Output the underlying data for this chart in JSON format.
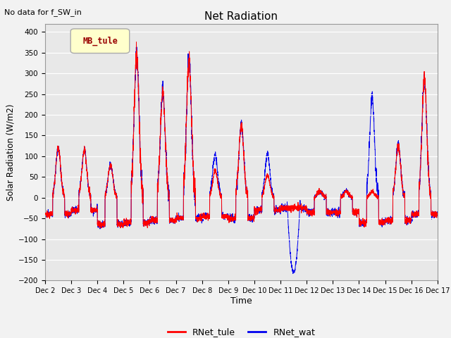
{
  "title": "Net Radiation",
  "xlabel": "Time",
  "ylabel": "Solar Radiation (W/m2)",
  "top_left_text": "No data for f_SW_in",
  "legend_box_text": "MB_tule",
  "ylim": [
    -200,
    420
  ],
  "yticks": [
    -200,
    -150,
    -100,
    -50,
    0,
    50,
    100,
    150,
    200,
    250,
    300,
    350,
    400
  ],
  "line1_color": "#FF0000",
  "line2_color": "#0000EE",
  "line1_label": "RNet_tule",
  "line2_label": "RNet_wat",
  "background_color": "#E8E8E8",
  "n_points": 3600,
  "legend_box_color": "#FFFFCC",
  "legend_box_edge": "#AAAAAA",
  "fig_bg": "#F2F2F2"
}
